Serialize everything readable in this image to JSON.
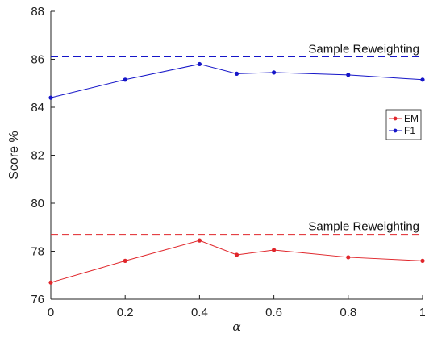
{
  "chart_data": {
    "type": "line",
    "x": [
      0,
      0.2,
      0.4,
      0.5,
      0.6,
      0.8,
      1
    ],
    "series": [
      {
        "name": "EM",
        "color": "#e0262b",
        "values": [
          76.7,
          77.6,
          78.45,
          77.85,
          78.05,
          77.75,
          77.6
        ]
      },
      {
        "name": "F1",
        "color": "#1515c8",
        "values": [
          84.4,
          85.15,
          85.8,
          85.4,
          85.45,
          85.35,
          85.15
        ]
      }
    ],
    "reference_lines": [
      {
        "label": "Sample Reweighting",
        "value": 78.7,
        "color": "#e0262b",
        "style": "dashed"
      },
      {
        "label": "Sample Reweighting",
        "value": 86.1,
        "color": "#1515c8",
        "style": "dashed"
      }
    ],
    "xlabel": "α",
    "ylabel": "Score %",
    "xlim": [
      0,
      1
    ],
    "ylim": [
      76,
      88
    ],
    "xticks": [
      "0",
      "0.2",
      "0.4",
      "0.6",
      "0.8",
      "1"
    ],
    "yticks": [
      "76",
      "78",
      "80",
      "82",
      "84",
      "86",
      "88"
    ],
    "grid": false,
    "legend_position": "right"
  }
}
